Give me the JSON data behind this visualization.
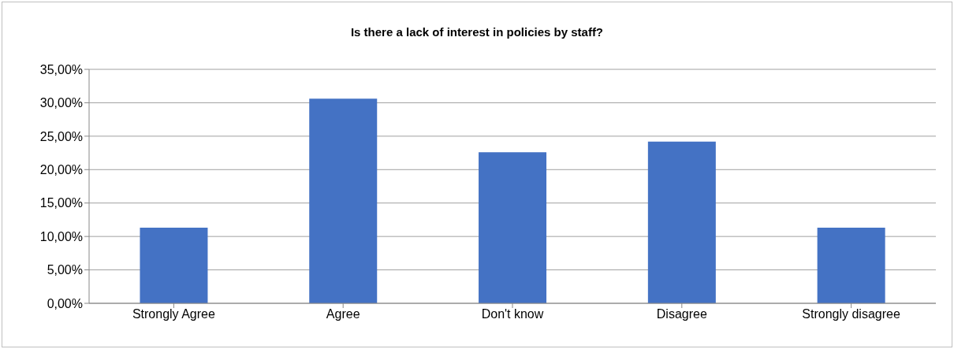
{
  "chart_data": {
    "type": "bar",
    "title": "Is there a lack of interest in policies by staff?",
    "categories": [
      "Strongly Agree",
      "Agree",
      "Don't know",
      "Disagree",
      "Strongly disagree"
    ],
    "values": [
      11.3,
      30.6,
      22.6,
      24.2,
      11.3
    ],
    "color": "#4472c4",
    "ylim": [
      0,
      35
    ],
    "yticks": [
      {
        "value": 0,
        "label": "0,00%"
      },
      {
        "value": 5,
        "label": "5,00%"
      },
      {
        "value": 10,
        "label": "10,00%"
      },
      {
        "value": 15,
        "label": "15,00%"
      },
      {
        "value": 20,
        "label": "20,00%"
      },
      {
        "value": 25,
        "label": "25,00%"
      },
      {
        "value": 30,
        "label": "30,00%"
      },
      {
        "value": 35,
        "label": "35,00%"
      }
    ],
    "grid": "y"
  }
}
